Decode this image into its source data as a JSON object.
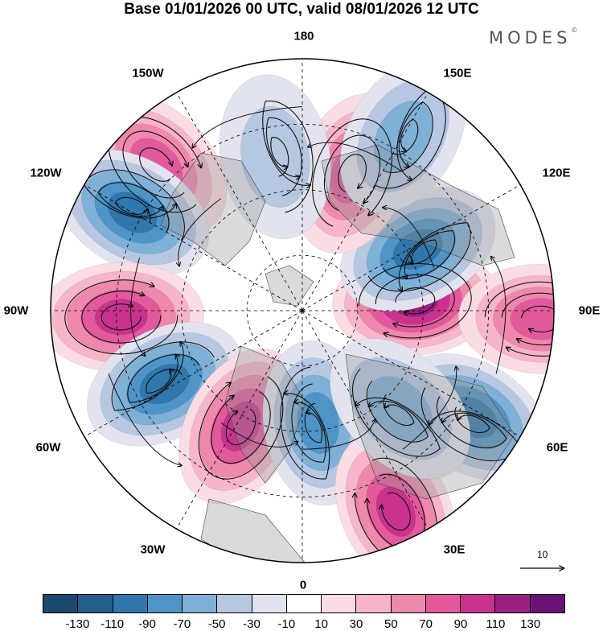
{
  "title": "Base 01/01/2026 00 UTC, valid 08/01/2026 12 UTC",
  "brand": "MODES",
  "brand_mark": "©",
  "longitude_labels": {
    "top": "180",
    "bottom": "0",
    "left": "90W",
    "right": "90E",
    "upper_left_outer": "150W",
    "upper_right_outer": "150E",
    "upper_left_inner": "120W",
    "upper_right_inner": "120E",
    "lower_left": "60W",
    "lower_right": "60E",
    "bottom_left": "30W",
    "bottom_right": "30E"
  },
  "vector_reference": "10",
  "colorbar": {
    "colors": [
      "#1b4a6e",
      "#255f8c",
      "#2f77ad",
      "#4f94c6",
      "#7fb0d6",
      "#b6c7e2",
      "#e3e3f0",
      "#ffffff",
      "#fadce3",
      "#f6b5c8",
      "#ee88ad",
      "#e25a9c",
      "#c9338e",
      "#9b1f80",
      "#6b1278"
    ],
    "ticks": [
      "-130",
      "-110",
      "-90",
      "-70",
      "-50",
      "-30",
      "-10",
      "10",
      "30",
      "50",
      "70",
      "90",
      "110",
      "130"
    ]
  },
  "anomaly_centers": [
    {
      "lon": -135,
      "r": 0.82,
      "value": 75
    },
    {
      "lon": -120,
      "r": 0.78,
      "value": -85
    },
    {
      "lon": -88,
      "r": 0.72,
      "value": 95
    },
    {
      "lon": -62,
      "r": 0.62,
      "value": -80
    },
    {
      "lon": -28,
      "r": 0.52,
      "value": 80
    },
    {
      "lon": 8,
      "r": 0.45,
      "value": -60
    },
    {
      "lon": 25,
      "r": 0.88,
      "value": 80
    },
    {
      "lon": 58,
      "r": 0.8,
      "value": -90
    },
    {
      "lon": 95,
      "r": 0.45,
      "value": 105
    },
    {
      "lon": 118,
      "r": 0.52,
      "value": -95
    },
    {
      "lon": 88,
      "r": 0.95,
      "value": 75
    },
    {
      "lon": 160,
      "r": 0.58,
      "value": 60
    },
    {
      "lon": 150,
      "r": 0.8,
      "value": -40
    },
    {
      "lon": -170,
      "r": 0.62,
      "value": -30
    },
    {
      "lon": 45,
      "r": 0.55,
      "value": -40
    }
  ]
}
